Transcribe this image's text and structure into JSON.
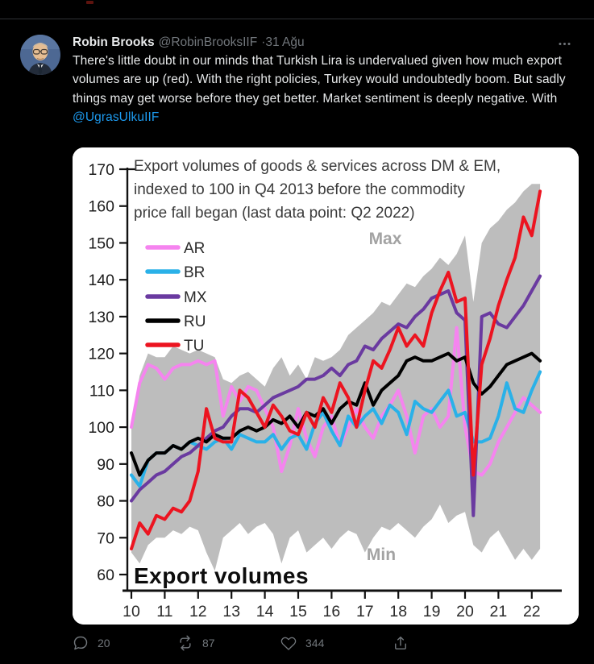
{
  "page": {
    "background": "#000000",
    "divider_color": "#2f3336"
  },
  "tweet": {
    "author": {
      "name": "Robin Brooks",
      "handle": "@RobinBrooksIIF",
      "separator": "·",
      "date": "31 Ağu"
    },
    "body": {
      "text_before_link": "There's little doubt in our minds that Turkish Lira is undervalued given how much export volumes are up (red). With the right policies, Turkey would undoubtedly boom. But sadly things may get worse before they get better. Market sentiment is deeply negative. With ",
      "link": "@UgrasUlkuIIF",
      "link_color": "#1d9bf0"
    },
    "actions": {
      "reply_count": "20",
      "retweet_count": "87",
      "like_count": "344"
    },
    "icons": [
      "more-icon",
      "reply-icon",
      "retweet-icon",
      "heart-icon",
      "share-icon"
    ]
  },
  "chart_data": {
    "type": "line",
    "title_lines": [
      "Export volumes of goods & services across DM & EM,",
      "indexed to 100 in Q4 2013  before the commodity",
      "price fall began (last data point: Q2 2022)"
    ],
    "corner_label": "Export volumes",
    "max_label": "Max",
    "min_label": "Min",
    "x_tick_labels": [
      "10",
      "11",
      "12",
      "13",
      "14",
      "15",
      "16",
      "17",
      "18",
      "19",
      "20",
      "21",
      "22"
    ],
    "y_ticks": [
      170,
      160,
      150,
      140,
      130,
      120,
      110,
      100,
      90,
      80,
      70,
      60
    ],
    "ylim": [
      60,
      170
    ],
    "x_range": "2010 Q1 – 2022 Q2, quarterly (50 points)",
    "legend_position": "upper-left",
    "grid": false,
    "band": {
      "name": "min–max range across DM & EM",
      "color": "#bdbdbd",
      "max": [
        101,
        114,
        120,
        119,
        119,
        122,
        121,
        120,
        121,
        120,
        119,
        113,
        112,
        114,
        115,
        113,
        111,
        116,
        119,
        114,
        117,
        113,
        119,
        118,
        119,
        121,
        125,
        127,
        129,
        131,
        134,
        133,
        136,
        139,
        138,
        141,
        143,
        146,
        144,
        147,
        152,
        134,
        150,
        154,
        156,
        159,
        161,
        164,
        166,
        166
      ],
      "min": [
        66,
        63,
        68,
        70,
        70,
        72,
        71,
        73,
        72,
        66,
        61,
        70,
        72,
        74,
        71,
        73,
        74,
        71,
        63,
        70,
        72,
        66,
        68,
        70,
        67,
        70,
        72,
        71,
        66,
        70,
        73,
        72,
        74,
        72,
        70,
        73,
        75,
        79,
        74,
        76,
        77,
        68,
        66,
        70,
        72,
        68,
        64,
        67,
        64,
        67
      ]
    },
    "series": [
      {
        "name": "AR",
        "color": "#f584ef",
        "values": [
          100,
          112,
          117,
          116,
          113,
          116,
          117,
          117,
          118,
          117,
          118,
          103,
          111,
          107,
          111,
          110,
          105,
          100,
          88,
          95,
          105,
          97,
          92,
          100,
          103,
          95,
          100,
          105,
          100,
          97,
          103,
          106,
          110,
          103,
          93,
          103,
          105,
          100,
          103,
          127,
          100,
          88,
          87,
          90,
          96,
          100,
          104,
          108,
          106,
          104
        ]
      },
      {
        "name": "BR",
        "color": "#2ab1e8",
        "values": [
          87,
          84,
          91,
          93,
          93,
          95,
          94,
          96,
          95,
          94,
          96,
          97,
          94,
          98,
          97,
          96,
          96,
          98,
          94,
          97,
          98,
          94,
          101,
          104,
          99,
          95,
          103,
          100,
          103,
          105,
          101,
          106,
          104,
          98,
          107,
          105,
          104,
          107,
          110,
          103,
          104,
          96,
          96,
          97,
          103,
          112,
          105,
          104,
          110,
          115
        ]
      },
      {
        "name": "MX",
        "color": "#6a3aa0",
        "values": [
          80,
          83,
          85,
          87,
          88,
          90,
          92,
          93,
          95,
          97,
          99,
          100,
          103,
          105,
          105,
          104,
          106,
          108,
          109,
          110,
          111,
          113,
          113,
          114,
          116,
          114,
          117,
          118,
          122,
          121,
          124,
          126,
          128,
          127,
          130,
          132,
          135,
          136,
          137,
          131,
          129,
          76,
          130,
          131,
          128,
          127,
          130,
          133,
          137,
          141
        ]
      },
      {
        "name": "RU",
        "color": "#000000",
        "values": [
          93,
          87,
          91,
          93,
          93,
          95,
          94,
          96,
          97,
          96,
          98,
          97,
          97,
          99,
          100,
          99,
          100,
          102,
          101,
          103,
          100,
          104,
          103,
          105,
          101,
          105,
          107,
          106,
          112,
          106,
          110,
          112,
          114,
          118,
          119,
          118,
          118,
          119,
          120,
          118,
          119,
          112,
          109,
          111,
          114,
          117,
          118,
          119,
          120,
          118
        ]
      },
      {
        "name": "TU",
        "color": "#ec1420",
        "values": [
          67,
          74,
          71,
          76,
          75,
          78,
          77,
          80,
          88,
          105,
          97,
          96,
          96,
          110,
          108,
          104,
          100,
          106,
          103,
          99,
          98,
          104,
          100,
          108,
          104,
          112,
          108,
          100,
          110,
          118,
          116,
          121,
          127,
          122,
          125,
          122,
          131,
          137,
          142,
          134,
          135,
          87,
          117,
          124,
          133,
          140,
          146,
          157,
          152,
          164
        ]
      }
    ],
    "text_color": "#3b3b3b",
    "band_label_color": "#a3a3a3"
  }
}
